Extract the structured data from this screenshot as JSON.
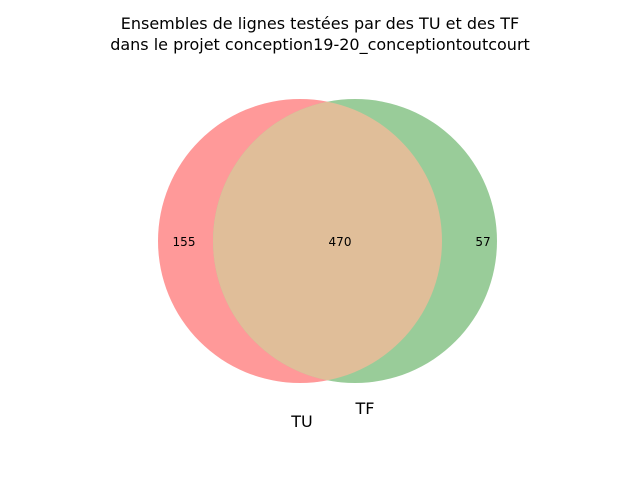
{
  "title": {
    "line1": "Ensembles de lignes testées par des TU et des TF",
    "line2": "dans le projet conception19-20_conceptiontoutcourt"
  },
  "chart_data": {
    "type": "venn",
    "sets": [
      {
        "name": "TU",
        "only": 155,
        "color": "#ff9999"
      },
      {
        "name": "TF",
        "only": 57,
        "color": "#99cc99"
      }
    ],
    "intersection": 470,
    "intersection_color": "#e0be99",
    "labels": {
      "set_a": "TU",
      "set_b": "TF",
      "a_only": "155",
      "intersection": "470",
      "b_only": "57"
    }
  }
}
